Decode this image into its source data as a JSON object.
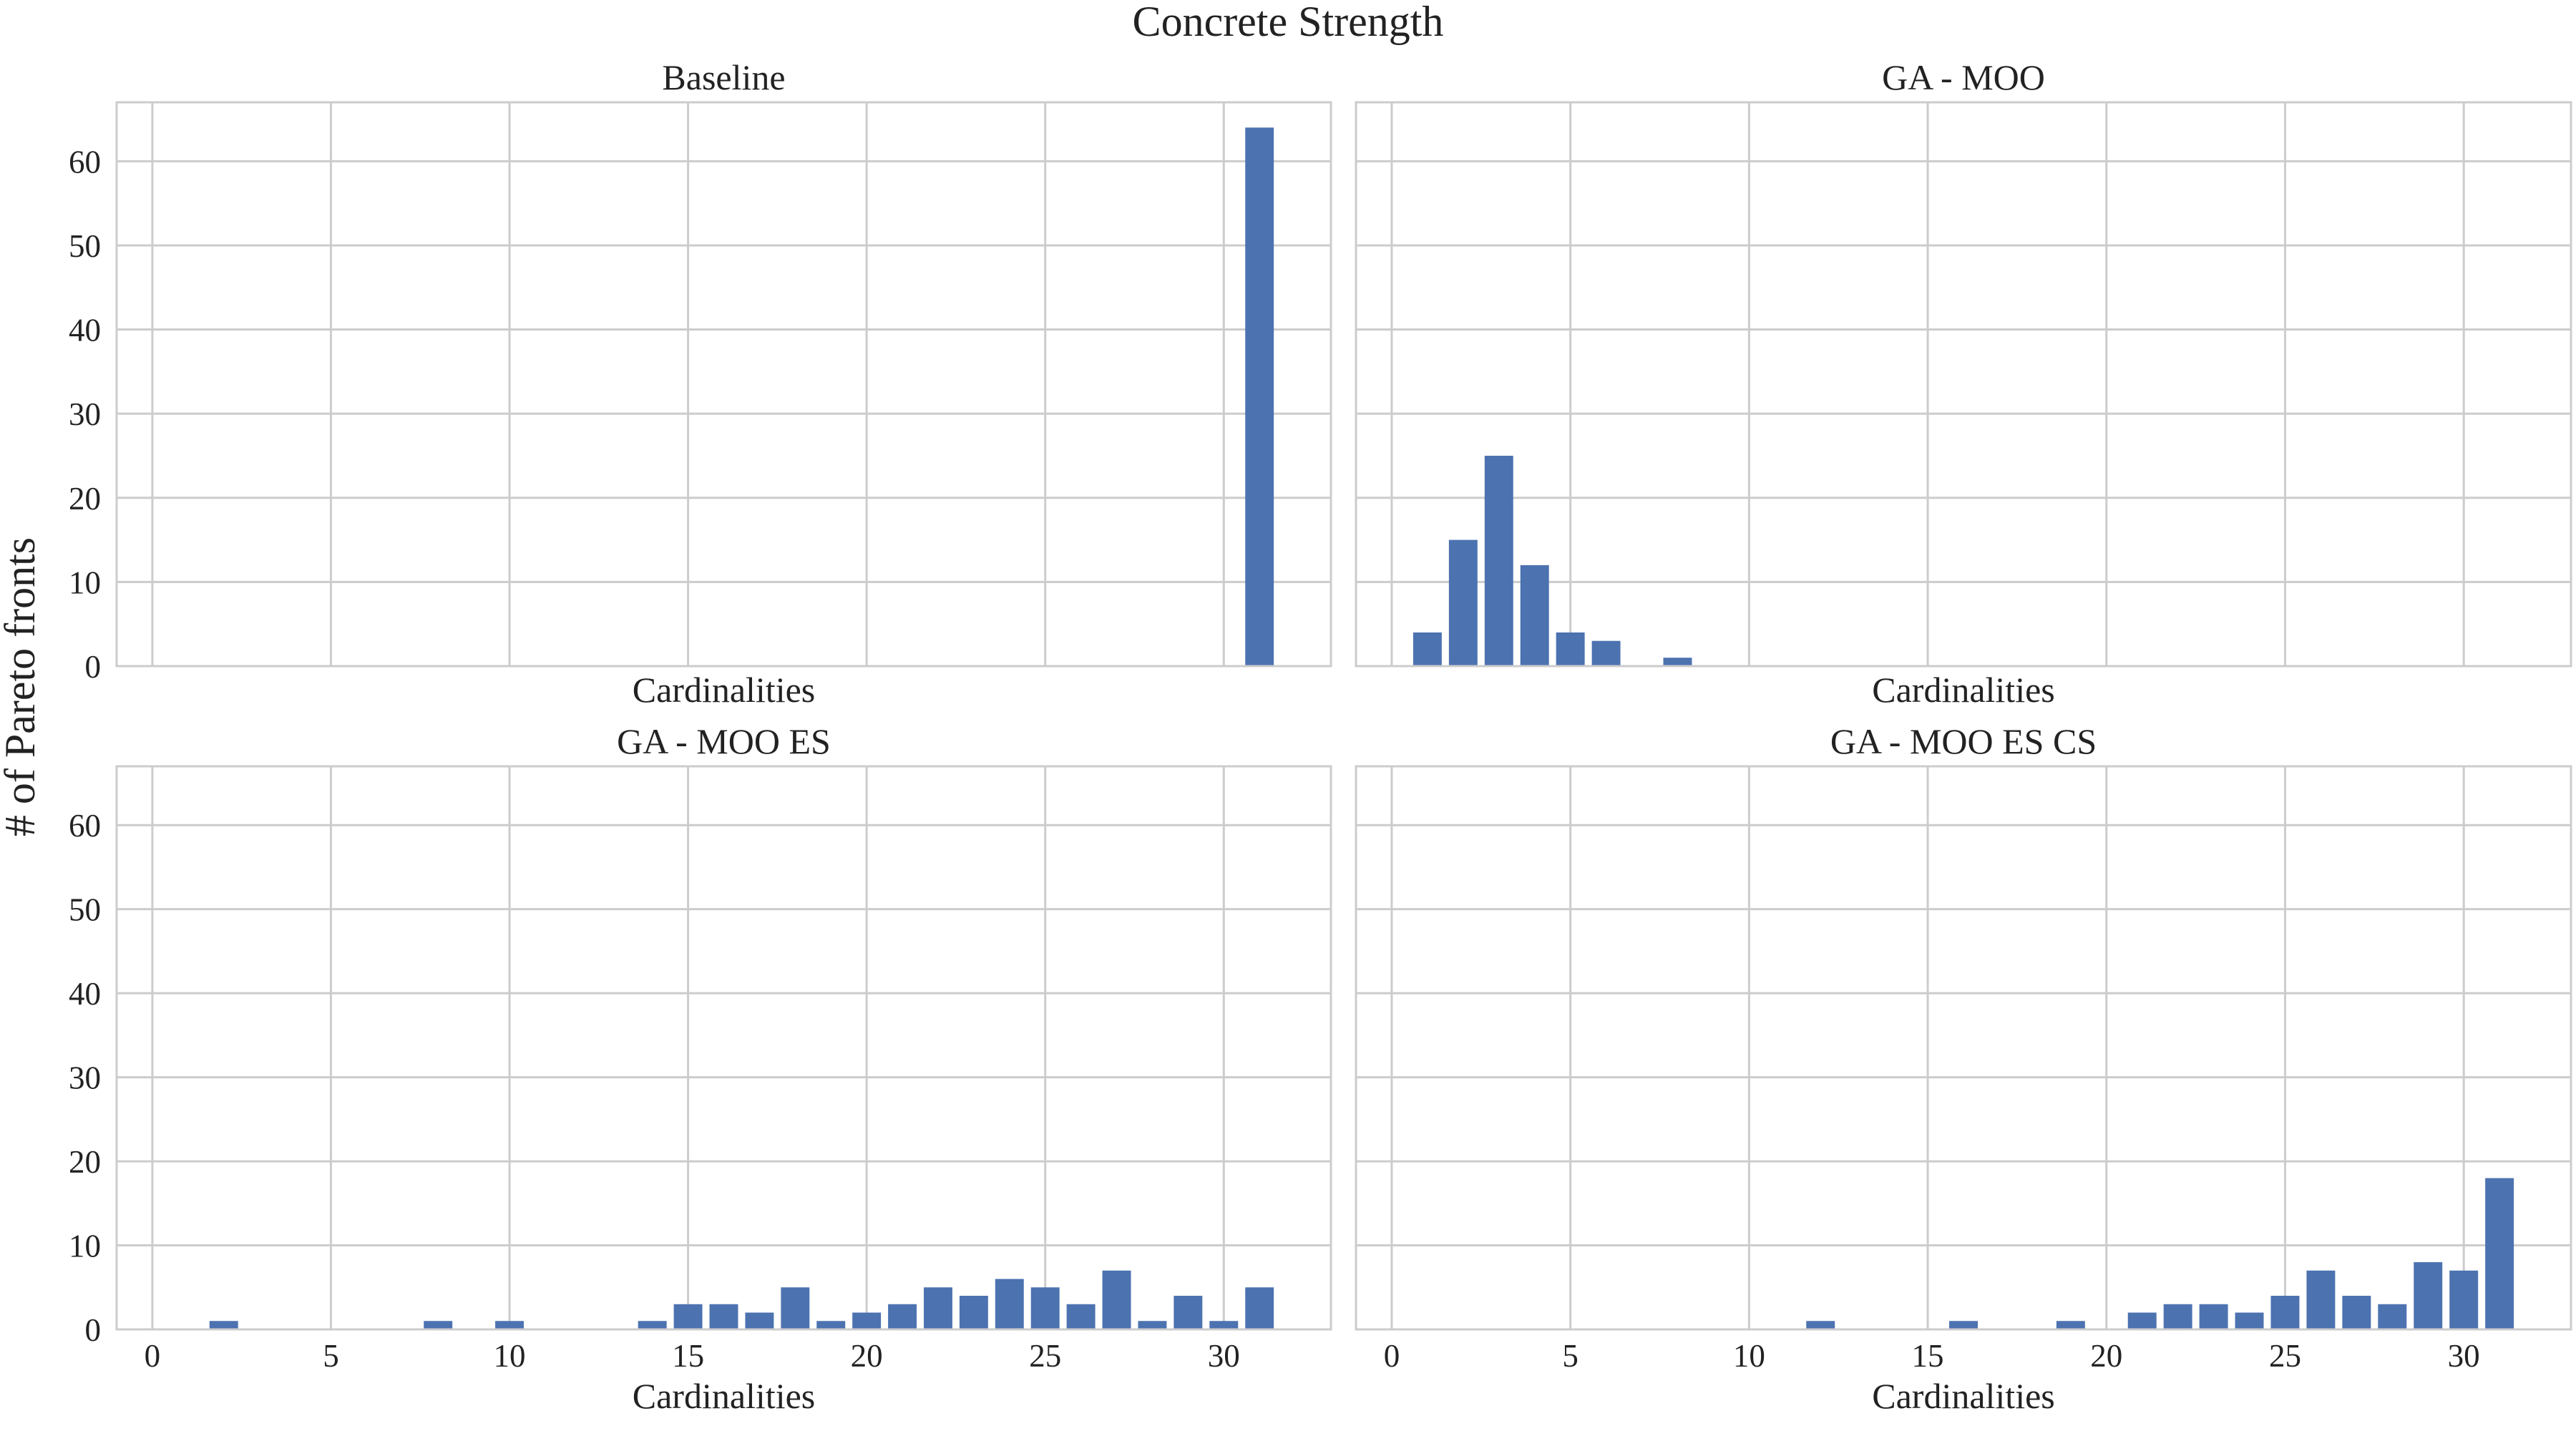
{
  "figure": {
    "title": "Concrete Strength",
    "ylabel": "# of Pareto fronts"
  },
  "chart_data": [
    {
      "type": "bar",
      "title": "Baseline",
      "xlabel": "Cardinalities",
      "ylabel": "# of Pareto fronts",
      "xlim": [
        -1,
        33
      ],
      "ylim": [
        0,
        67
      ],
      "xticks": [
        0,
        5,
        10,
        15,
        20,
        25,
        30
      ],
      "yticks": [
        0,
        10,
        20,
        30,
        40,
        50,
        60
      ],
      "show_xtick_labels": false,
      "show_ytick_labels": true,
      "grid": true,
      "color": "#4c72b0",
      "x": [
        31
      ],
      "values": [
        64
      ]
    },
    {
      "type": "bar",
      "title": "GA - MOO",
      "xlabel": "Cardinalities",
      "ylabel": "",
      "xlim": [
        -1,
        33
      ],
      "ylim": [
        0,
        67
      ],
      "xticks": [
        0,
        5,
        10,
        15,
        20,
        25,
        30
      ],
      "yticks": [
        0,
        10,
        20,
        30,
        40,
        50,
        60
      ],
      "show_xtick_labels": false,
      "show_ytick_labels": false,
      "grid": true,
      "color": "#4c72b0",
      "x": [
        1,
        2,
        3,
        4,
        5,
        6,
        8
      ],
      "values": [
        4,
        15,
        25,
        12,
        4,
        3,
        1
      ]
    },
    {
      "type": "bar",
      "title": "GA - MOO ES",
      "xlabel": "Cardinalities",
      "ylabel": "# of Pareto fronts",
      "xlim": [
        -1,
        33
      ],
      "ylim": [
        0,
        67
      ],
      "xticks": [
        0,
        5,
        10,
        15,
        20,
        25,
        30
      ],
      "yticks": [
        0,
        10,
        20,
        30,
        40,
        50,
        60
      ],
      "show_xtick_labels": true,
      "show_ytick_labels": true,
      "grid": true,
      "color": "#4c72b0",
      "x": [
        2,
        8,
        10,
        14,
        15,
        16,
        17,
        18,
        19,
        20,
        21,
        22,
        23,
        24,
        25,
        26,
        27,
        28,
        29,
        30,
        31
      ],
      "values": [
        1,
        1,
        1,
        1,
        3,
        3,
        2,
        5,
        1,
        2,
        3,
        5,
        4,
        6,
        5,
        3,
        7,
        1,
        4,
        1,
        5
      ]
    },
    {
      "type": "bar",
      "title": "GA - MOO ES CS",
      "xlabel": "Cardinalities",
      "ylabel": "",
      "xlim": [
        -1,
        33
      ],
      "ylim": [
        0,
        67
      ],
      "xticks": [
        0,
        5,
        10,
        15,
        20,
        25,
        30
      ],
      "yticks": [
        0,
        10,
        20,
        30,
        40,
        50,
        60
      ],
      "show_xtick_labels": true,
      "show_ytick_labels": false,
      "grid": true,
      "color": "#4c72b0",
      "x": [
        12,
        16,
        19,
        21,
        22,
        23,
        24,
        25,
        26,
        27,
        28,
        29,
        30,
        31
      ],
      "values": [
        1,
        1,
        1,
        2,
        3,
        3,
        2,
        4,
        7,
        4,
        3,
        8,
        7,
        18
      ]
    }
  ]
}
